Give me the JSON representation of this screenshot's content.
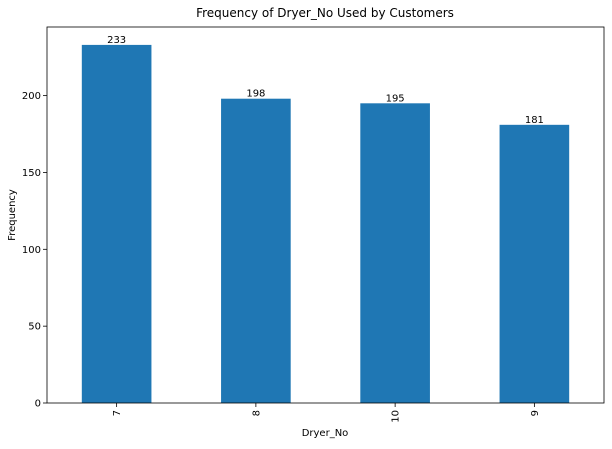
{
  "chart_data": {
    "type": "bar",
    "title": "Frequency of Dryer_No Used by Customers",
    "xlabel": "Dryer_No",
    "ylabel": "Frequency",
    "categories": [
      "7",
      "8",
      "10",
      "9"
    ],
    "values": [
      233,
      198,
      195,
      181
    ],
    "data_labels": [
      "233",
      "198",
      "195",
      "181"
    ],
    "ylim": [
      0,
      244.65
    ],
    "yticks": [
      0,
      50,
      100,
      150,
      200
    ],
    "ytick_labels": [
      "0",
      "50",
      "100",
      "150",
      "200"
    ],
    "bar_color": "#1f77b4",
    "grid": false,
    "legend": "none",
    "x_tick_rotation": "vertical"
  }
}
